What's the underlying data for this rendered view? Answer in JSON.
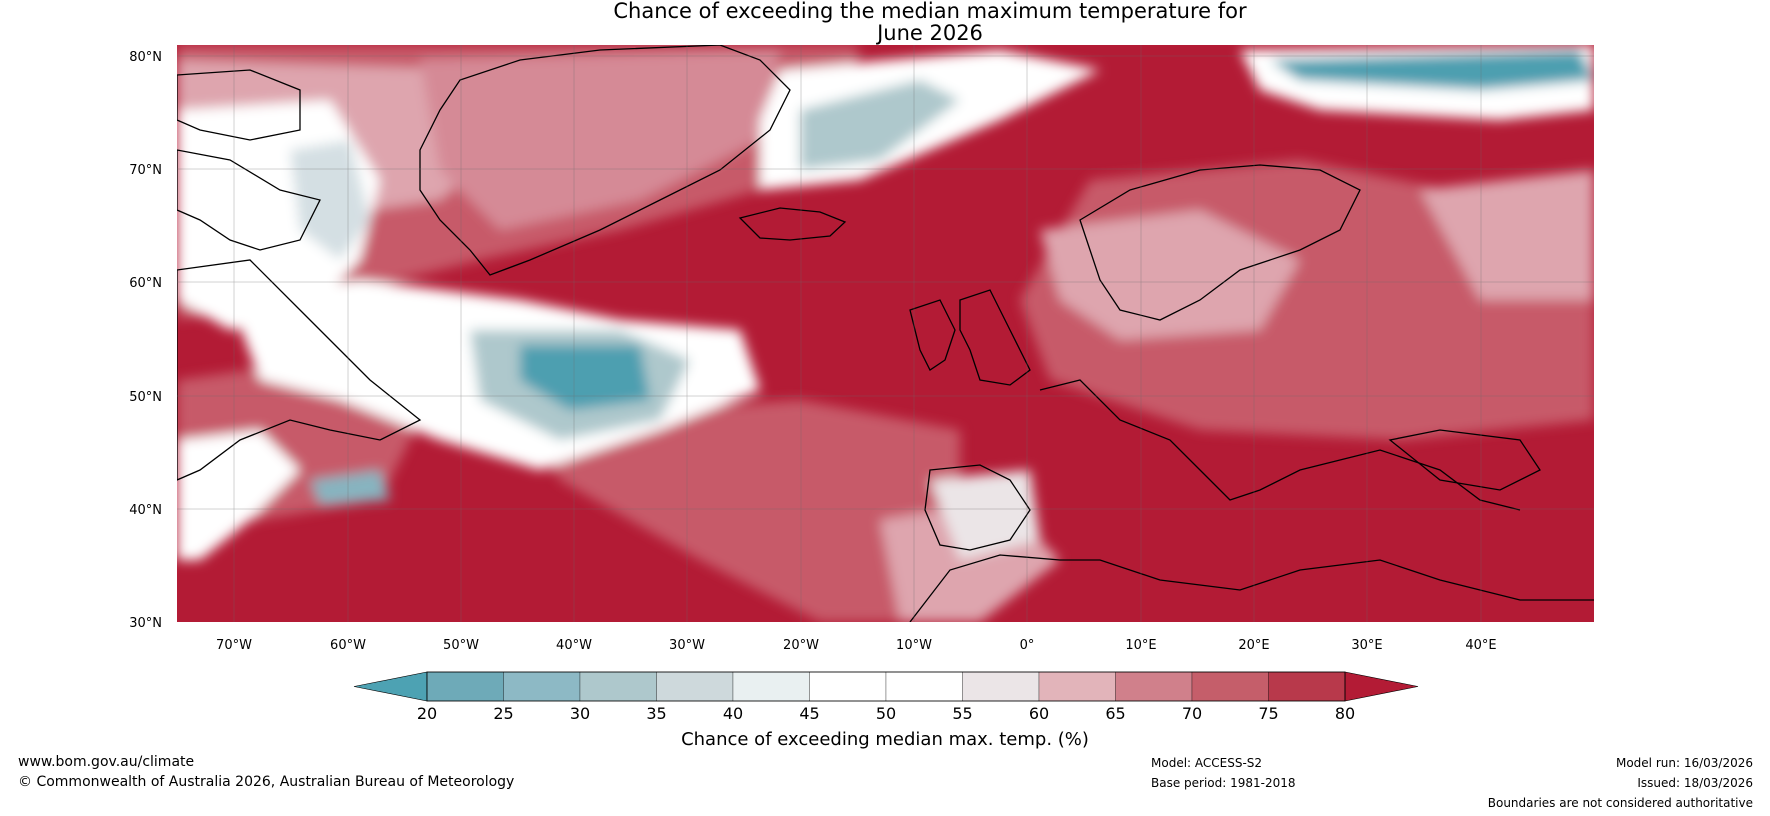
{
  "title_line1": "Chance of exceeding the median maximum temperature for",
  "title_line2": "June 2026",
  "map": {
    "lat_labels": [
      "80°N",
      "70°N",
      "60°N",
      "50°N",
      "40°N",
      "30°N"
    ],
    "lon_labels": [
      "70°W",
      "60°W",
      "50°W",
      "40°W",
      "30°W",
      "20°W",
      "10°W",
      "0°",
      "10°E",
      "20°E",
      "30°E",
      "40°E"
    ],
    "colors": {
      "strong_warm": "#b31b35",
      "warm": "#c75a69",
      "light_warm": "#dea5ae",
      "neutral": "#ffffff",
      "light_cool": "#d4dfe3",
      "cool": "#87b4c0",
      "strong_cool": "#4d9fb0"
    }
  },
  "colorbar": {
    "ticks": [
      "20",
      "25",
      "30",
      "35",
      "40",
      "45",
      "50",
      "55",
      "60",
      "65",
      "70",
      "75",
      "80"
    ],
    "colors": [
      "#4da2b3",
      "#6eaab8",
      "#8db9c5",
      "#aec8cc",
      "#ced9dc",
      "#e9f0f1",
      "#ffffff",
      "#ffffff",
      "#ebe5e7",
      "#e2b4ba",
      "#d0808b",
      "#c55e6a",
      "#b8394b",
      "#b31b35"
    ],
    "label": "Chance of exceeding median max. temp. (%)"
  },
  "footer": {
    "website": "www.bom.gov.au/climate",
    "copyright": "© Commonwealth of Australia 2026, Australian Bureau of Meteorology",
    "model": "Model: ACCESS-S2",
    "base_period": "Base period: 1981-2018",
    "model_run": "Model run: 16/03/2026",
    "issued": "Issued: 18/03/2026",
    "disclaimer": "Boundaries are not considered authoritative"
  }
}
